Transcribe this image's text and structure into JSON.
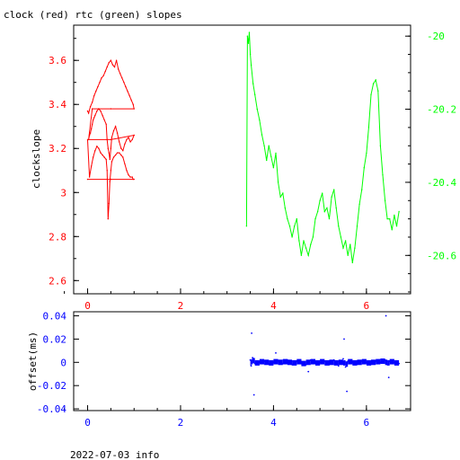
{
  "title": "clock (red) rtc (green) slopes",
  "footer": "2022-07-03 info",
  "colors": {
    "clock": "#ff0000",
    "rtc": "#00ff00",
    "offset": "#0000ff",
    "axis": "#000000"
  },
  "chart_data": [
    {
      "type": "line",
      "title": "clock (red) rtc (green) slopes",
      "ylabel": "clockslope",
      "xlim": [
        -0.3,
        6.95
      ],
      "ylim": [
        2.54,
        3.76
      ],
      "y2lim": [
        -20.705,
        -19.97
      ],
      "xticks": [
        "0",
        "2",
        "4",
        "6"
      ],
      "yticks": [
        "2.6",
        "2.8",
        "3",
        "3.2",
        "3.4",
        "3.6"
      ],
      "y2ticks": [
        "-20",
        "-20.2",
        "-20.4",
        "-20.6"
      ],
      "series": [
        {
          "name": "clock",
          "axis": "left",
          "x": [
            0.0,
            0.02,
            0.06,
            0.1,
            0.14,
            0.18,
            0.22,
            0.26,
            0.3,
            0.34,
            0.38,
            0.42,
            0.46,
            0.5,
            0.54,
            0.58,
            0.62,
            0.66,
            0.7,
            0.74,
            0.78,
            0.82,
            0.86,
            0.9,
            0.94,
            0.98,
            1.0,
            0.5,
            0.1,
            0.02,
            0.04,
            0.06,
            0.08,
            0.1,
            0.12,
            0.14,
            0.16,
            0.2,
            0.24,
            0.28,
            0.32,
            0.36,
            0.4,
            0.42,
            0.44,
            0.46,
            0.48,
            0.5,
            0.52,
            0.56,
            0.6,
            0.64,
            0.68,
            0.72,
            0.76,
            0.8,
            0.84,
            0.88,
            0.92,
            0.96,
            1.0,
            0.5,
            0.0,
            0.04,
            0.08,
            0.12,
            0.16,
            0.2,
            0.24,
            0.28,
            0.32,
            0.36,
            0.4,
            0.42,
            0.44,
            0.46,
            0.48,
            0.5,
            0.52,
            0.56,
            0.6,
            0.64,
            0.68,
            0.72,
            0.76,
            0.8,
            0.84,
            0.88,
            0.92,
            0.96,
            0.98,
            1.0,
            0.5,
            0.0
          ],
          "y": [
            3.37,
            3.36,
            3.39,
            3.41,
            3.44,
            3.46,
            3.48,
            3.5,
            3.52,
            3.53,
            3.55,
            3.57,
            3.59,
            3.6,
            3.58,
            3.57,
            3.6,
            3.56,
            3.54,
            3.52,
            3.5,
            3.48,
            3.46,
            3.44,
            3.42,
            3.4,
            3.38,
            3.38,
            3.38,
            3.24,
            3.26,
            3.27,
            3.29,
            3.31,
            3.33,
            3.34,
            3.35,
            3.37,
            3.38,
            3.37,
            3.35,
            3.33,
            3.31,
            3.24,
            3.2,
            3.18,
            3.15,
            3.2,
            3.25,
            3.28,
            3.3,
            3.27,
            3.23,
            3.2,
            3.19,
            3.22,
            3.24,
            3.25,
            3.23,
            3.24,
            3.26,
            3.24,
            3.24,
            3.07,
            3.12,
            3.16,
            3.19,
            3.21,
            3.2,
            3.18,
            3.17,
            3.16,
            3.15,
            3.1,
            2.88,
            2.95,
            3.05,
            3.1,
            3.14,
            3.16,
            3.17,
            3.18,
            3.18,
            3.17,
            3.16,
            3.13,
            3.1,
            3.08,
            3.07,
            3.07,
            3.06,
            3.06,
            3.06,
            3.06
          ]
        },
        {
          "name": "rtc",
          "axis": "right",
          "x": [
            3.42,
            3.44,
            3.46,
            3.48,
            3.5,
            3.52,
            3.56,
            3.6,
            3.65,
            3.7,
            3.75,
            3.8,
            3.85,
            3.9,
            3.95,
            4.0,
            4.05,
            4.1,
            4.15,
            4.2,
            4.25,
            4.3,
            4.35,
            4.4,
            4.45,
            4.5,
            4.55,
            4.6,
            4.65,
            4.7,
            4.75,
            4.8,
            4.85,
            4.9,
            4.95,
            5.0,
            5.05,
            5.1,
            5.15,
            5.2,
            5.25,
            5.3,
            5.35,
            5.4,
            5.45,
            5.5,
            5.55,
            5.6,
            5.65,
            5.7,
            5.75,
            5.8,
            5.85,
            5.9,
            5.95,
            6.0,
            6.05,
            6.1,
            6.15,
            6.2,
            6.25,
            6.3,
            6.35,
            6.4,
            6.45,
            6.5,
            6.55,
            6.6,
            6.65,
            6.7
          ],
          "y": [
            -20.52,
            -20.0,
            -20.02,
            -19.99,
            -20.05,
            -20.08,
            -20.13,
            -20.16,
            -20.2,
            -20.23,
            -20.27,
            -20.3,
            -20.34,
            -20.3,
            -20.33,
            -20.36,
            -20.32,
            -20.4,
            -20.44,
            -20.43,
            -20.47,
            -20.5,
            -20.52,
            -20.55,
            -20.52,
            -20.5,
            -20.56,
            -20.6,
            -20.56,
            -20.58,
            -20.6,
            -20.57,
            -20.55,
            -20.5,
            -20.48,
            -20.45,
            -20.43,
            -20.48,
            -20.47,
            -20.5,
            -20.44,
            -20.42,
            -20.47,
            -20.52,
            -20.55,
            -20.58,
            -20.56,
            -20.6,
            -20.57,
            -20.62,
            -20.58,
            -20.52,
            -20.46,
            -20.42,
            -20.36,
            -20.32,
            -20.25,
            -20.16,
            -20.13,
            -20.12,
            -20.15,
            -20.3,
            -20.38,
            -20.45,
            -20.5,
            -20.5,
            -20.53,
            -20.49,
            -20.52,
            -20.48
          ]
        }
      ]
    },
    {
      "type": "scatter",
      "ylabel": "offset(ms)",
      "xlim": [
        -0.3,
        6.95
      ],
      "ylim": [
        -0.0415,
        0.0435
      ],
      "xticks": [
        "0",
        "2",
        "4",
        "6"
      ],
      "yticks": [
        "0.04",
        "0.02",
        "0",
        "-0.02",
        "-0.04"
      ],
      "series": [
        {
          "name": "offset",
          "x": [
            3.5,
            3.52,
            3.55,
            3.6,
            3.7,
            3.8,
            3.9,
            4.0,
            4.1,
            4.2,
            4.3,
            4.4,
            4.5,
            4.6,
            4.7,
            4.8,
            4.9,
            5.0,
            5.1,
            5.2,
            5.3,
            5.4,
            5.5,
            5.55,
            5.6,
            5.7,
            5.8,
            5.9,
            6.0,
            6.1,
            6.2,
            6.3,
            6.4,
            6.45,
            6.5,
            6.6,
            6.7,
            3.53,
            3.58,
            5.52,
            5.58,
            6.42,
            6.48,
            4.05,
            4.75
          ],
          "y": [
            0.002,
            -0.003,
            0.004,
            -0.001,
            0.0,
            0.001,
            -0.001,
            0.0,
            0.001,
            -0.001,
            0.002,
            -0.002,
            0.001,
            0.0,
            -0.002,
            0.002,
            -0.001,
            0.0,
            0.001,
            -0.002,
            0.002,
            -0.003,
            0.003,
            -0.004,
            0.001,
            0.0,
            -0.001,
            0.001,
            0.0,
            -0.001,
            0.001,
            0.0,
            0.002,
            -0.002,
            0.001,
            0.0,
            -0.001,
            0.025,
            -0.028,
            0.02,
            -0.025,
            0.04,
            -0.013,
            0.008,
            -0.008
          ]
        }
      ]
    }
  ]
}
